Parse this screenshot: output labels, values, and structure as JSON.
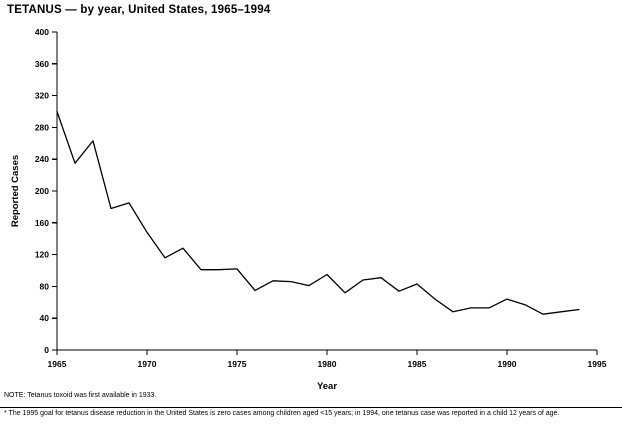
{
  "title": "TETANUS — by year, United States, 1965–1994",
  "note": "NOTE: Tetanus toxoid was first available in 1933.",
  "footnote": "* The 1995 goal for tetanus disease reduction in the United States is zero cases among children aged <15 years; in 1994, one tetanus case was reported in a child 12 years of age.",
  "chart_data": {
    "type": "line",
    "title": "TETANUS — by year, United States, 1965–1994",
    "xlabel": "Year",
    "ylabel": "Reported Cases",
    "x": [
      1965,
      1966,
      1967,
      1968,
      1969,
      1970,
      1971,
      1972,
      1973,
      1974,
      1975,
      1976,
      1977,
      1978,
      1979,
      1980,
      1981,
      1982,
      1983,
      1984,
      1985,
      1986,
      1987,
      1988,
      1989,
      1990,
      1991,
      1992,
      1993,
      1994
    ],
    "values": [
      300,
      235,
      263,
      178,
      185,
      148,
      116,
      128,
      101,
      101,
      102,
      75,
      87,
      86,
      81,
      95,
      72,
      88,
      91,
      74,
      83,
      64,
      48,
      53,
      53,
      64,
      57,
      45,
      48,
      51
    ],
    "xlim": [
      1965,
      1995
    ],
    "ylim": [
      0,
      400
    ],
    "yticks": [
      0,
      40,
      80,
      120,
      160,
      200,
      240,
      280,
      320,
      360,
      400
    ],
    "xticks": [
      1965,
      1970,
      1975,
      1980,
      1985,
      1990,
      1995
    ],
    "grid": false,
    "legend": "none",
    "line_color": "#000000",
    "background_color": "#ffffff"
  }
}
